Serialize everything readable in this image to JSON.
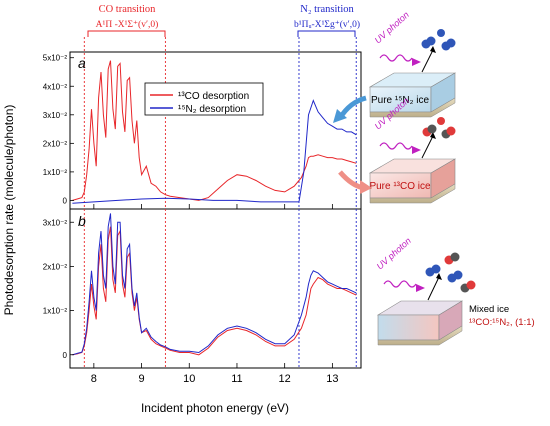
{
  "chart_data": [
    {
      "panel": "a",
      "type": "line",
      "xlabel": "Incident photon energy (eV)",
      "ylabel": "Photodesorption rate (molecule/photon)",
      "xlim": [
        7.5,
        13.6
      ],
      "ylim": [
        -0.3,
        5.2
      ],
      "y_scale_note": "x10^-2",
      "yticks": [
        0,
        1,
        2,
        3,
        4,
        5
      ],
      "ytick_labels": [
        "0",
        "1x10⁻²",
        "2x10⁻²",
        "3x10⁻²",
        "4x10⁻²",
        "5x10⁻²"
      ],
      "legend": [
        "¹³CO desorption",
        "¹⁵N₂ desorption"
      ],
      "series": [
        {
          "name": "¹³CO desorption",
          "color": "#e8262a",
          "x": [
            7.55,
            7.65,
            7.75,
            7.8,
            7.85,
            7.9,
            7.95,
            8.0,
            8.05,
            8.1,
            8.15,
            8.2,
            8.25,
            8.3,
            8.35,
            8.4,
            8.45,
            8.5,
            8.55,
            8.6,
            8.65,
            8.7,
            8.75,
            8.8,
            8.85,
            8.9,
            8.95,
            9.0,
            9.1,
            9.2,
            9.3,
            9.4,
            9.5,
            9.6,
            9.8,
            10.0,
            10.2,
            10.4,
            10.6,
            10.8,
            11.0,
            11.2,
            11.4,
            11.6,
            11.8,
            12.0,
            12.2,
            12.35,
            12.45,
            12.5,
            12.55,
            12.6,
            12.7,
            12.8,
            12.9,
            13.0,
            13.1,
            13.2,
            13.3,
            13.4,
            13.5
          ],
          "y": [
            0,
            0.05,
            0.1,
            0.3,
            0.9,
            1.8,
            3.2,
            2.0,
            1.2,
            3.6,
            4.5,
            3.0,
            2.2,
            4.6,
            4.9,
            3.2,
            2.5,
            4.7,
            4.8,
            3.1,
            2.4,
            4.2,
            4.3,
            2.8,
            2.0,
            2.8,
            1.5,
            0.9,
            1.2,
            0.6,
            0.5,
            0.3,
            0.2,
            0.15,
            0.1,
            0.05,
            0.0,
            0.1,
            0.4,
            0.7,
            0.9,
            0.85,
            0.7,
            0.5,
            0.35,
            0.3,
            0.5,
            0.8,
            1.2,
            1.5,
            1.55,
            1.55,
            1.6,
            1.55,
            1.5,
            1.5,
            1.45,
            1.45,
            1.4,
            1.35,
            1.3
          ]
        },
        {
          "name": "¹⁵N₂ desorption",
          "color": "#2027c9",
          "x": [
            7.55,
            8.0,
            8.5,
            9.0,
            9.5,
            10.0,
            10.5,
            11.0,
            11.5,
            12.0,
            12.3,
            12.4,
            12.5,
            12.6,
            12.7,
            12.8,
            12.9,
            13.0,
            13.1,
            13.2,
            13.3,
            13.4,
            13.5
          ],
          "y": [
            -0.1,
            -0.05,
            0.0,
            0.05,
            0.08,
            0.05,
            0.0,
            0.0,
            -0.05,
            -0.05,
            -0.05,
            1.0,
            3.0,
            3.5,
            3.1,
            2.9,
            2.7,
            2.6,
            2.5,
            2.5,
            2.4,
            2.4,
            2.3
          ]
        }
      ]
    },
    {
      "panel": "b",
      "type": "line",
      "xlim": [
        7.5,
        13.6
      ],
      "ylim": [
        -0.3,
        3.3
      ],
      "yticks": [
        0,
        1,
        2,
        3
      ],
      "ytick_labels": [
        "0",
        "1x10⁻²",
        "2x10⁻²",
        "3x10⁻²"
      ],
      "xticks": [
        8,
        9,
        10,
        11,
        12,
        13
      ],
      "series": [
        {
          "name": "¹³CO desorption",
          "color": "#e8262a",
          "x": [
            7.55,
            7.65,
            7.75,
            7.8,
            7.85,
            7.9,
            7.95,
            8.0,
            8.05,
            8.1,
            8.15,
            8.2,
            8.25,
            8.3,
            8.35,
            8.4,
            8.45,
            8.5,
            8.55,
            8.6,
            8.65,
            8.7,
            8.75,
            8.8,
            8.85,
            8.9,
            8.95,
            9.0,
            9.1,
            9.2,
            9.3,
            9.4,
            9.5,
            9.6,
            9.8,
            10.0,
            10.2,
            10.4,
            10.6,
            10.8,
            11.0,
            11.2,
            11.4,
            11.6,
            11.8,
            12.0,
            12.2,
            12.35,
            12.45,
            12.5,
            12.55,
            12.6,
            12.7,
            12.8,
            12.9,
            13.0,
            13.1,
            13.2,
            13.3,
            13.4,
            13.5
          ],
          "y": [
            0,
            0.02,
            0.05,
            0.2,
            0.5,
            1.0,
            1.6,
            1.1,
            0.8,
            2.0,
            2.5,
            1.5,
            1.2,
            2.6,
            2.9,
            1.7,
            1.4,
            2.7,
            2.8,
            1.6,
            1.3,
            2.2,
            2.3,
            1.4,
            1.0,
            1.3,
            0.8,
            0.5,
            0.55,
            0.35,
            0.25,
            0.2,
            0.15,
            0.1,
            0.05,
            0.05,
            0.0,
            0.15,
            0.4,
            0.55,
            0.6,
            0.55,
            0.45,
            0.3,
            0.2,
            0.2,
            0.35,
            0.6,
            0.9,
            1.2,
            1.5,
            1.6,
            1.75,
            1.7,
            1.6,
            1.55,
            1.5,
            1.5,
            1.45,
            1.4,
            1.35
          ]
        },
        {
          "name": "¹⁵N₂ desorption",
          "color": "#2027c9",
          "x": [
            7.55,
            7.65,
            7.75,
            7.8,
            7.85,
            7.9,
            7.95,
            8.0,
            8.05,
            8.1,
            8.15,
            8.2,
            8.25,
            8.3,
            8.35,
            8.4,
            8.45,
            8.5,
            8.55,
            8.6,
            8.65,
            8.7,
            8.75,
            8.8,
            8.85,
            8.9,
            8.95,
            9.0,
            9.1,
            9.2,
            9.3,
            9.4,
            9.5,
            9.6,
            9.8,
            10.0,
            10.2,
            10.4,
            10.6,
            10.8,
            11.0,
            11.2,
            11.4,
            11.6,
            11.8,
            12.0,
            12.2,
            12.35,
            12.45,
            12.5,
            12.55,
            12.6,
            12.7,
            12.8,
            12.9,
            13.0,
            13.1,
            13.2,
            13.3,
            13.4,
            13.5
          ],
          "y": [
            0,
            0.03,
            0.06,
            0.25,
            0.6,
            1.2,
            1.9,
            1.3,
            1.0,
            2.3,
            2.8,
            1.8,
            1.5,
            2.9,
            3.2,
            2.0,
            1.6,
            3.0,
            3.0,
            1.8,
            1.5,
            2.4,
            2.5,
            1.5,
            1.1,
            1.4,
            0.85,
            0.5,
            0.6,
            0.4,
            0.3,
            0.22,
            0.18,
            0.12,
            0.08,
            0.08,
            0.05,
            0.2,
            0.45,
            0.6,
            0.65,
            0.6,
            0.5,
            0.35,
            0.25,
            0.25,
            0.45,
            0.9,
            1.3,
            1.6,
            1.8,
            1.9,
            1.85,
            1.75,
            1.65,
            1.6,
            1.55,
            1.5,
            1.5,
            1.45,
            1.4
          ]
        }
      ]
    }
  ],
  "annotations": {
    "co_transition_title": "CO transition",
    "co_transition_sub": "A¹Π -X¹Σ⁺(v′,0)",
    "n2_transition_title": "N₂ transition",
    "n2_transition_sub": "b¹Πᵤ-X¹Σg⁺(v′,0)",
    "panel_a": "a",
    "panel_b": "b",
    "vlines_ev": [
      7.8,
      9.5,
      12.3,
      13.5
    ]
  },
  "schematics": {
    "uv_label": "UV photon",
    "box1": "Pure ¹⁵N₂ ice",
    "box2": "Pure ¹³CO ice",
    "box3_line1": "Mixed ice",
    "box3_line2": "¹³CO:¹⁵N₂, (1:1)"
  },
  "colors": {
    "co": "#e8262a",
    "n2": "#2027c9"
  }
}
